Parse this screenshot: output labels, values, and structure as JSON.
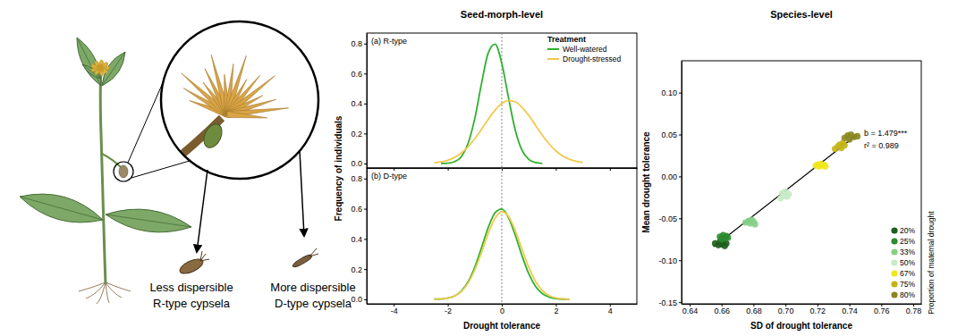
{
  "illustration": {
    "r_type": [
      "Less dispersible",
      "R-type cypsela"
    ],
    "d_type": [
      "More dispersible",
      "D-type cypsela"
    ]
  },
  "column_titles": [
    "Seed-morph-level",
    "Species-level"
  ],
  "chart_data": [
    {
      "type": "line",
      "title": "(a) R-type",
      "ylabel": "Frequency of individuals",
      "x": [
        -2.5,
        -2.25,
        -2,
        -1.75,
        -1.5,
        -1.25,
        -1,
        -0.75,
        -0.5,
        -0.25,
        0,
        0.25,
        0.5,
        0.75,
        1,
        1.25,
        1.5,
        1.75,
        2,
        2.25,
        2.5,
        2.75,
        3
      ],
      "series": [
        {
          "name": "Well-watered",
          "color": "#2fb02f",
          "values": [
            null,
            0,
            0.002,
            0.012,
            0.045,
            0.132,
            0.3,
            0.534,
            0.738,
            0.796,
            0.668,
            0.437,
            0.222,
            0.088,
            0.027,
            0.007,
            0.001,
            null,
            null,
            null,
            null,
            null,
            null
          ]
        },
        {
          "name": "Drought-stressed",
          "color": "#f2c94c",
          "values": [
            0.005,
            0.011,
            0.022,
            0.041,
            0.07,
            0.111,
            0.165,
            0.228,
            0.295,
            0.355,
            0.4,
            0.419,
            0.411,
            0.375,
            0.32,
            0.255,
            0.189,
            0.131,
            0.085,
            0.051,
            0.029,
            0.015,
            0.007
          ]
        }
      ],
      "xlim": [
        -5,
        5
      ],
      "xticks": [
        -4,
        -2,
        0,
        2,
        4
      ],
      "ylim": [
        -0.03,
        0.87
      ],
      "yticks": [
        {
          "value": 0,
          "label": "0.0"
        },
        0.2,
        0.4,
        0.6,
        0.8
      ],
      "vline": 0,
      "tick_labels": "y",
      "legend": "upper right",
      "legend_title": "Treatment"
    },
    {
      "type": "line",
      "title": "(b) D-type",
      "xlabel": "Drought tolerance",
      "x": [
        -2.5,
        -2.25,
        -2,
        -1.75,
        -1.5,
        -1.25,
        -1,
        -0.75,
        -0.5,
        -0.25,
        0,
        0.25,
        0.5,
        0.75,
        1,
        1.25,
        1.5,
        1.75,
        2,
        2.25,
        2.5,
        2.75,
        3
      ],
      "series": [
        {
          "color": "#2fb02f",
          "values": [
            0.001,
            0.002,
            0.008,
            0.022,
            0.054,
            0.115,
            0.213,
            0.342,
            0.476,
            0.573,
            0.598,
            0.541,
            0.424,
            0.288,
            0.169,
            0.086,
            0.038,
            0.015,
            0.005,
            0.001,
            0,
            null,
            null
          ]
        },
        {
          "color": "#f2c94c",
          "values": [
            0.001,
            0.003,
            0.008,
            0.022,
            0.051,
            0.107,
            0.195,
            0.311,
            0.437,
            0.537,
            0.58,
            0.549,
            0.455,
            0.331,
            0.212,
            0.118,
            0.058,
            0.025,
            0.009,
            0.003,
            0.001,
            null,
            null
          ]
        }
      ],
      "xlim": [
        -5,
        5
      ],
      "xticks": [
        -4,
        -2,
        0,
        2,
        4
      ],
      "ylim": [
        -0.03,
        0.87
      ],
      "yticks": [
        {
          "value": 0,
          "label": "0.0"
        },
        0.2,
        0.4,
        0.6,
        0.8
      ],
      "vline": 0
    },
    {
      "type": "scatter",
      "xlabel": "SD of drought tolerance",
      "ylabel": "Mean drought tolerance",
      "series": [
        {
          "name": "20%",
          "color": "#1d5e1d",
          "x": [
            0.656,
            0.658,
            0.659,
            0.66,
            0.661,
            0.662,
            0.663
          ],
          "values": [
            -0.08,
            -0.082,
            -0.078,
            -0.081,
            -0.079,
            -0.083,
            -0.08
          ]
        },
        {
          "name": "25%",
          "color": "#2c8a2c",
          "x": [
            0.659,
            0.66,
            0.661,
            0.662,
            0.663,
            0.664
          ],
          "values": [
            -0.072,
            -0.075,
            -0.07,
            -0.074,
            -0.071,
            -0.073
          ]
        },
        {
          "name": "33%",
          "color": "#86cf86",
          "x": [
            0.675,
            0.677,
            0.678,
            0.679,
            0.68,
            0.681
          ],
          "values": [
            -0.055,
            -0.053,
            -0.056,
            -0.052,
            -0.054,
            -0.057
          ]
        },
        {
          "name": "50%",
          "color": "#c6ebc6",
          "x": [
            0.697,
            0.698,
            0.699,
            0.7,
            0.701,
            0.702
          ],
          "values": [
            -0.026,
            -0.02,
            -0.023,
            -0.018,
            -0.024,
            -0.021
          ]
        },
        {
          "name": "67%",
          "color": "#eee81c",
          "x": [
            0.719,
            0.72,
            0.721,
            0.722,
            0.723,
            0.724,
            0.725
          ],
          "values": [
            0.013,
            0.014,
            0.012,
            0.015,
            0.013,
            0.014,
            0.012
          ]
        },
        {
          "name": "75%",
          "color": "#c4b418",
          "x": [
            0.731,
            0.733,
            0.734,
            0.735,
            0.736,
            0.737
          ],
          "values": [
            0.033,
            0.036,
            0.038,
            0.034,
            0.04,
            0.037
          ]
        },
        {
          "name": "80%",
          "color": "#8a861e",
          "x": [
            0.737,
            0.739,
            0.74,
            0.741,
            0.743,
            0.745
          ],
          "values": [
            0.046,
            0.049,
            0.044,
            0.05,
            0.047,
            0.048
          ]
        }
      ],
      "fit": {
        "x": [
          0.655,
          0.745
        ],
        "values": [
          -0.084,
          0.05
        ]
      },
      "annotations": [
        "b = 1.479***",
        "r² = 0.989"
      ],
      "xlim": [
        0.635,
        0.785
      ],
      "xticks": [
        0.64,
        0.66,
        0.68,
        {
          "value": 0.7,
          "label": "0.70"
        },
        0.72,
        0.74,
        0.76,
        0.78
      ],
      "ylim": [
        -0.152,
        0.138
      ],
      "yticks": [
        -0.15,
        {
          "value": -0.1,
          "label": "-0.10"
        },
        -0.05,
        {
          "value": 0,
          "label": "0.00"
        },
        0.05,
        {
          "value": 0.1,
          "label": "0.10"
        }
      ],
      "legend": "lower right",
      "legend_title": "Proportion of maternal drought"
    }
  ]
}
